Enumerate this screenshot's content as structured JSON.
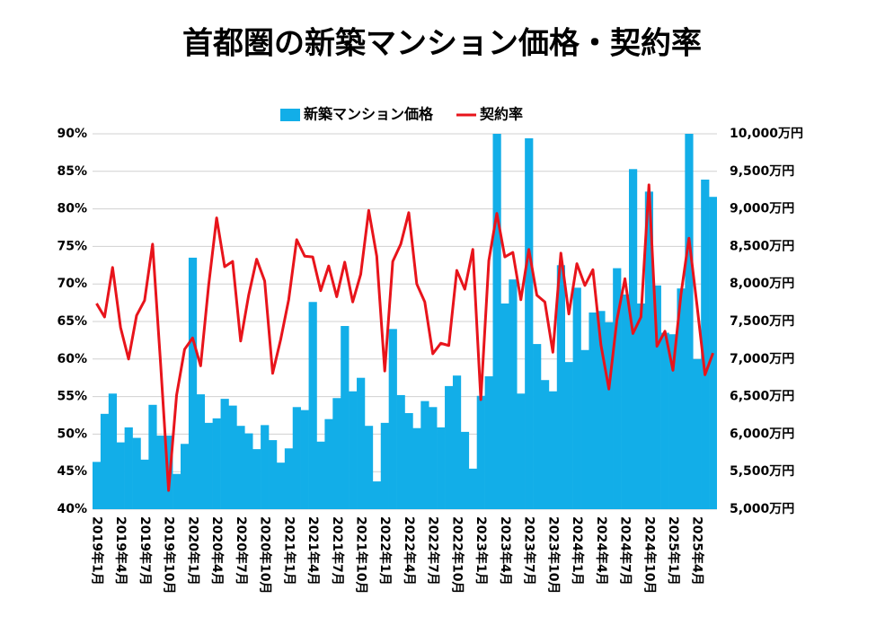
{
  "chart_data": {
    "type": "combo",
    "title": "首都圏の新築マンション価格・契約率",
    "categories": [
      "2019年1月",
      null,
      null,
      "2019年4月",
      null,
      null,
      "2019年7月",
      null,
      null,
      "2019年10月",
      null,
      null,
      "2020年1月",
      null,
      null,
      "2020年4月",
      null,
      null,
      "2020年7月",
      null,
      null,
      "2020年10月",
      null,
      null,
      "2021年1月",
      null,
      null,
      "2021年4月",
      null,
      null,
      "2021年7月",
      null,
      null,
      "2021年10月",
      null,
      null,
      "2022年1月",
      null,
      null,
      "2022年4月",
      null,
      null,
      "2022年7月",
      null,
      null,
      "2022年10月",
      null,
      null,
      "2023年1月",
      null,
      null,
      "2023年4月",
      null,
      null,
      "2023年7月",
      null,
      null,
      "2023年10月",
      null,
      null,
      "2024年1月",
      null,
      null,
      "2024年4月",
      null,
      null,
      "2024年7月",
      null,
      null,
      "2024年10月",
      null,
      null,
      "2025年1月",
      null,
      null,
      "2025年4月",
      null,
      null
    ],
    "series": [
      {
        "name": "新築マンション価格",
        "type": "bar",
        "axis": "y2",
        "color": "#12aee8",
        "values": [
          5630,
          6270,
          6540,
          5890,
          6090,
          5950,
          5660,
          6390,
          5980,
          5980,
          5470,
          5870,
          8350,
          6530,
          6150,
          6210,
          6470,
          6380,
          6110,
          6010,
          5800,
          6120,
          5920,
          5620,
          5810,
          6360,
          6320,
          7760,
          5900,
          6200,
          6480,
          7440,
          6570,
          6750,
          6110,
          5370,
          6150,
          7400,
          6520,
          6280,
          6080,
          6440,
          6360,
          6090,
          6640,
          6780,
          6030,
          5540,
          6510,
          6770,
          10000,
          7740,
          8060,
          6540,
          9940,
          7200,
          6720,
          6570,
          8250,
          6960,
          7950,
          7120,
          7620,
          7640,
          7490,
          8210,
          7860,
          9530,
          7740,
          9230,
          7980,
          7350,
          7330,
          7940,
          10000,
          7000,
          9390,
          9160
        ]
      },
      {
        "name": "契約率",
        "type": "line",
        "axis": "y",
        "color": "#e8141b",
        "values": [
          67.4,
          65.6,
          72.2,
          64.2,
          60.0,
          65.8,
          67.8,
          75.3,
          59.4,
          42.5,
          55.2,
          61.3,
          62.8,
          59.1,
          69.8,
          78.8,
          72.3,
          73.0,
          62.4,
          68.5,
          73.3,
          70.4,
          58.1,
          62.6,
          67.9,
          75.9,
          73.7,
          73.6,
          69.1,
          72.4,
          68.3,
          72.9,
          67.6,
          71.3,
          79.8,
          73.7,
          58.4,
          73.0,
          75.3,
          79.5,
          70.0,
          67.6,
          60.7,
          62.1,
          61.8,
          71.8,
          69.3,
          74.6,
          54.6,
          73.1,
          79.4,
          73.6,
          74.2,
          67.9,
          74.6,
          68.5,
          67.6,
          60.9,
          74.1,
          66.0,
          72.7,
          69.8,
          71.9,
          61.9,
          56.0,
          65.2,
          70.7,
          63.4,
          65.6,
          83.2,
          61.7,
          63.7,
          58.5,
          68.6,
          76.1,
          67.2,
          57.9,
          60.8
        ]
      }
    ],
    "ylim": [
      40,
      90
    ],
    "yticks": [
      {
        "value": 40,
        "label": "40%"
      },
      {
        "value": 45,
        "label": "45%"
      },
      {
        "value": 50,
        "label": "50%"
      },
      {
        "value": 55,
        "label": "55%"
      },
      {
        "value": 60,
        "label": "60%"
      },
      {
        "value": 65,
        "label": "65%"
      },
      {
        "value": 70,
        "label": "70%"
      },
      {
        "value": 75,
        "label": "75%"
      },
      {
        "value": 80,
        "label": "80%"
      },
      {
        "value": 85,
        "label": "85%"
      },
      {
        "value": 90,
        "label": "90%"
      }
    ],
    "y2lim": [
      5000,
      10000
    ],
    "y2ticks": [
      {
        "value": 5000,
        "label": "5,000万円"
      },
      {
        "value": 5500,
        "label": "5,500万円"
      },
      {
        "value": 6000,
        "label": "6,000万円"
      },
      {
        "value": 6500,
        "label": "6,500万円"
      },
      {
        "value": 7000,
        "label": "7,000万円"
      },
      {
        "value": 7500,
        "label": "7,500万円"
      },
      {
        "value": 8000,
        "label": "8,000万円"
      },
      {
        "value": 8500,
        "label": "8,500万円"
      },
      {
        "value": 9000,
        "label": "9,000万円"
      },
      {
        "value": 9500,
        "label": "9,500万円"
      },
      {
        "value": 10000,
        "label": "10,000万円"
      }
    ],
    "grid": true
  }
}
